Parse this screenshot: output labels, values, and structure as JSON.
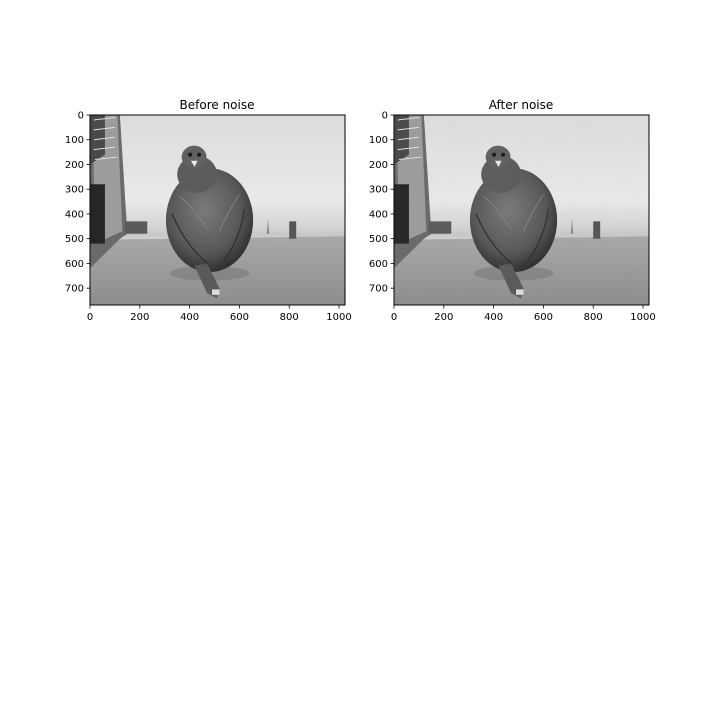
{
  "figure": {
    "panels": [
      {
        "title": "Before noise"
      },
      {
        "title": "After noise"
      }
    ]
  },
  "chart_data": [
    {
      "type": "image",
      "title": "Before noise",
      "colormap": "gray",
      "xlim": [
        0,
        1024
      ],
      "ylim": [
        768,
        0
      ],
      "xticks": [
        0,
        200,
        400,
        600,
        800,
        1000
      ],
      "yticks": [
        0,
        100,
        200,
        300,
        400,
        500,
        600,
        700
      ]
    },
    {
      "type": "image",
      "title": "After noise",
      "colormap": "gray",
      "xlim": [
        0,
        1024
      ],
      "ylim": [
        768,
        0
      ],
      "xticks": [
        0,
        200,
        400,
        600,
        800,
        1000
      ],
      "yticks": [
        0,
        100,
        200,
        300,
        400,
        500,
        600,
        700
      ]
    }
  ]
}
